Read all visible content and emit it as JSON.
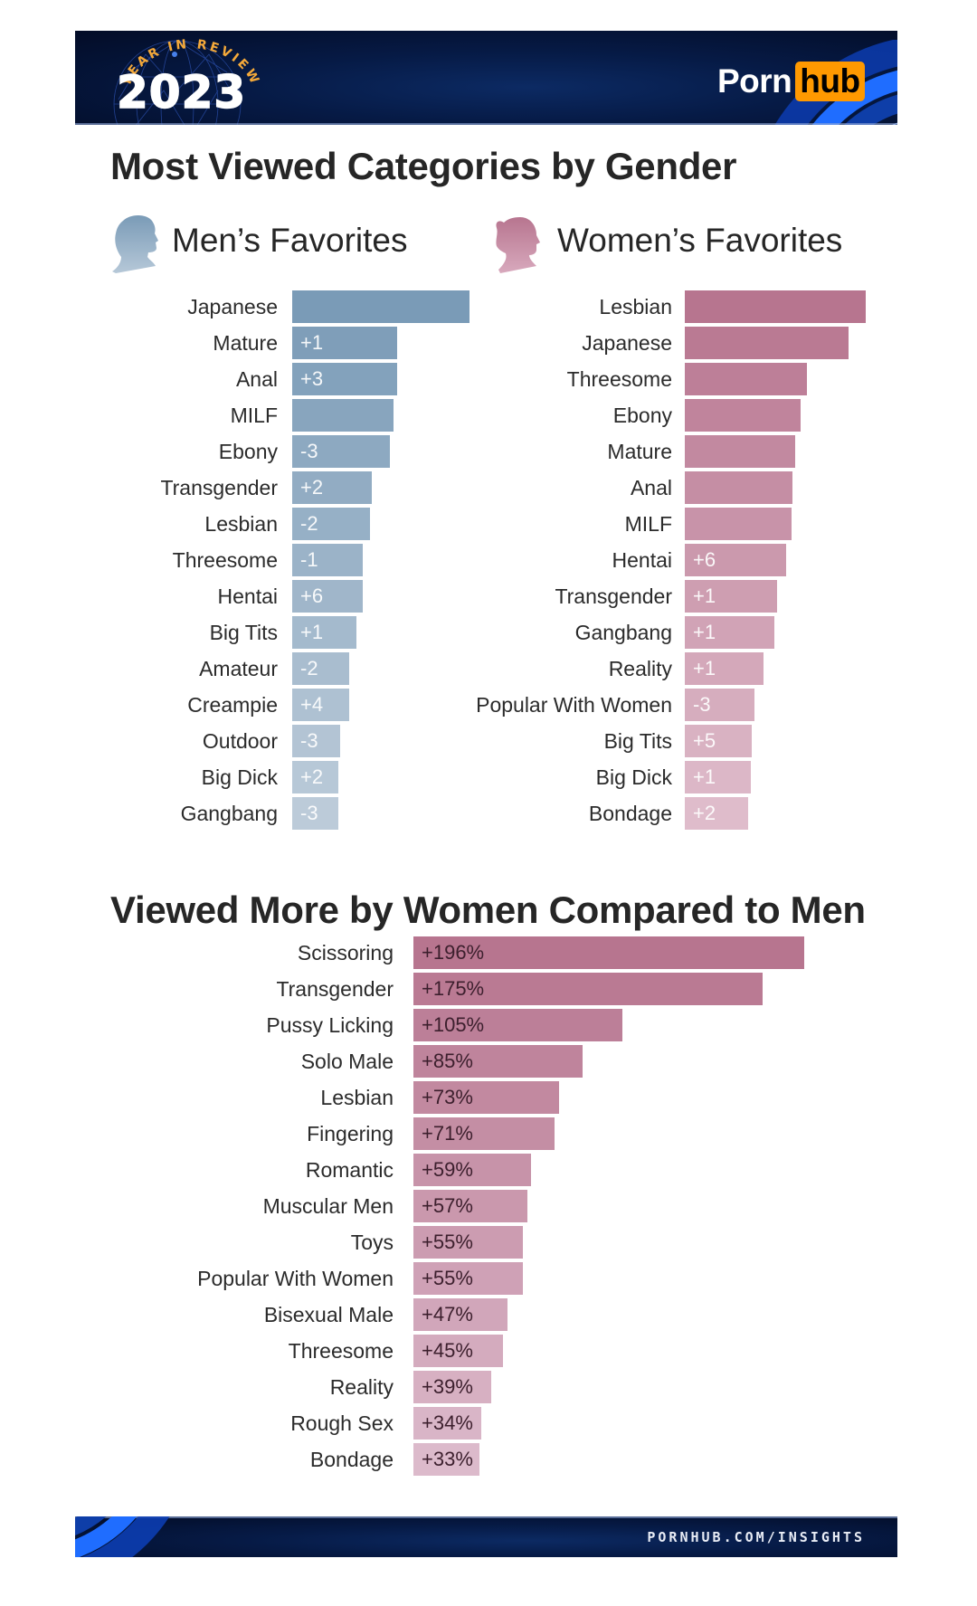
{
  "header": {
    "badge_arc_text": "YEAR IN REVIEW",
    "year": "2023",
    "logo_left": "Porn",
    "logo_right": "hub",
    "logo_accent_color": "#ff9900"
  },
  "sections": {
    "gender_title": "Most Viewed Categories by Gender",
    "men_heading": "Men’s Favorites",
    "women_heading": "Women’s Favorites",
    "diff_title": "Viewed More by Women Compared to Men"
  },
  "footer": {
    "url": "PORNHUB.COM/INSIGHTS"
  },
  "colors": {
    "men_bar_top": "#7a9bb7",
    "men_bar_bottom": "#bccbd9",
    "women_bar_top": "#b7758f",
    "women_bar_bottom": "#dfbccb",
    "diff_bar_top": "#b7758f",
    "diff_bar_bottom": "#dcbacb",
    "banner_dark": "#030c26"
  },
  "chart_data": [
    {
      "type": "bar",
      "orientation": "horizontal",
      "title": "Men’s Favorites",
      "note": "values are relative bar lengths (top category = 100), estimated; badges show rank change vs prior year",
      "categories": [
        "Japanese",
        "Mature",
        "Anal",
        "MILF",
        "Ebony",
        "Transgender",
        "Lesbian",
        "Threesome",
        "Hentai",
        "Big Tits",
        "Amateur",
        "Creampie",
        "Outdoor",
        "Big Dick",
        "Gangbang"
      ],
      "values": [
        100,
        59,
        59,
        57,
        55,
        45,
        44,
        40,
        40,
        36,
        32,
        32,
        27,
        26,
        26
      ],
      "rank_change": [
        "",
        "+1",
        "+3",
        "",
        "-3",
        "+2",
        "-2",
        "-1",
        "+6",
        "+1",
        "-2",
        "+4",
        "-3",
        "+2",
        "-3"
      ]
    },
    {
      "type": "bar",
      "orientation": "horizontal",
      "title": "Women’s Favorites",
      "note": "values are relative bar lengths (top category = 100), estimated; badges show rank change vs prior year",
      "categories": [
        "Lesbian",
        "Japanese",
        "Threesome",
        "Ebony",
        "Mature",
        "Anal",
        "MILF",
        "Hentai",
        "Transgender",
        "Gangbang",
        "Reality",
        "Popular With Women",
        "Big Tits",
        "Big Dick",
        "Bondage"
      ],
      "values": [
        100,
        90.5,
        67.5,
        64,
        61,
        59.5,
        59,
        56,
        51,
        49.5,
        43.5,
        38.5,
        37,
        36.5,
        35
      ],
      "rank_change": [
        "",
        "",
        "",
        "",
        "",
        "",
        "",
        "+6",
        "+1",
        "+1",
        "+1",
        "-3",
        "+5",
        "+1",
        "+2"
      ]
    },
    {
      "type": "bar",
      "orientation": "horizontal",
      "title": "Viewed More by Women Compared to Men",
      "categories": [
        "Scissoring",
        "Transgender",
        "Pussy Licking",
        "Solo Male",
        "Lesbian",
        "Fingering",
        "Romantic",
        "Muscular Men",
        "Toys",
        "Popular With Women",
        "Bisexual Male",
        "Threesome",
        "Reality",
        "Rough Sex",
        "Bondage"
      ],
      "values": [
        196,
        175,
        105,
        85,
        73,
        71,
        59,
        57,
        55,
        55,
        47,
        45,
        39,
        34,
        33
      ],
      "labels": [
        "+196%",
        "+175%",
        "+105%",
        "+85%",
        "+73%",
        "+71%",
        "+59%",
        "+57%",
        "+55%",
        "+55%",
        "+47%",
        "+45%",
        "+39%",
        "+34%",
        "+33%"
      ],
      "unit": "%"
    }
  ]
}
